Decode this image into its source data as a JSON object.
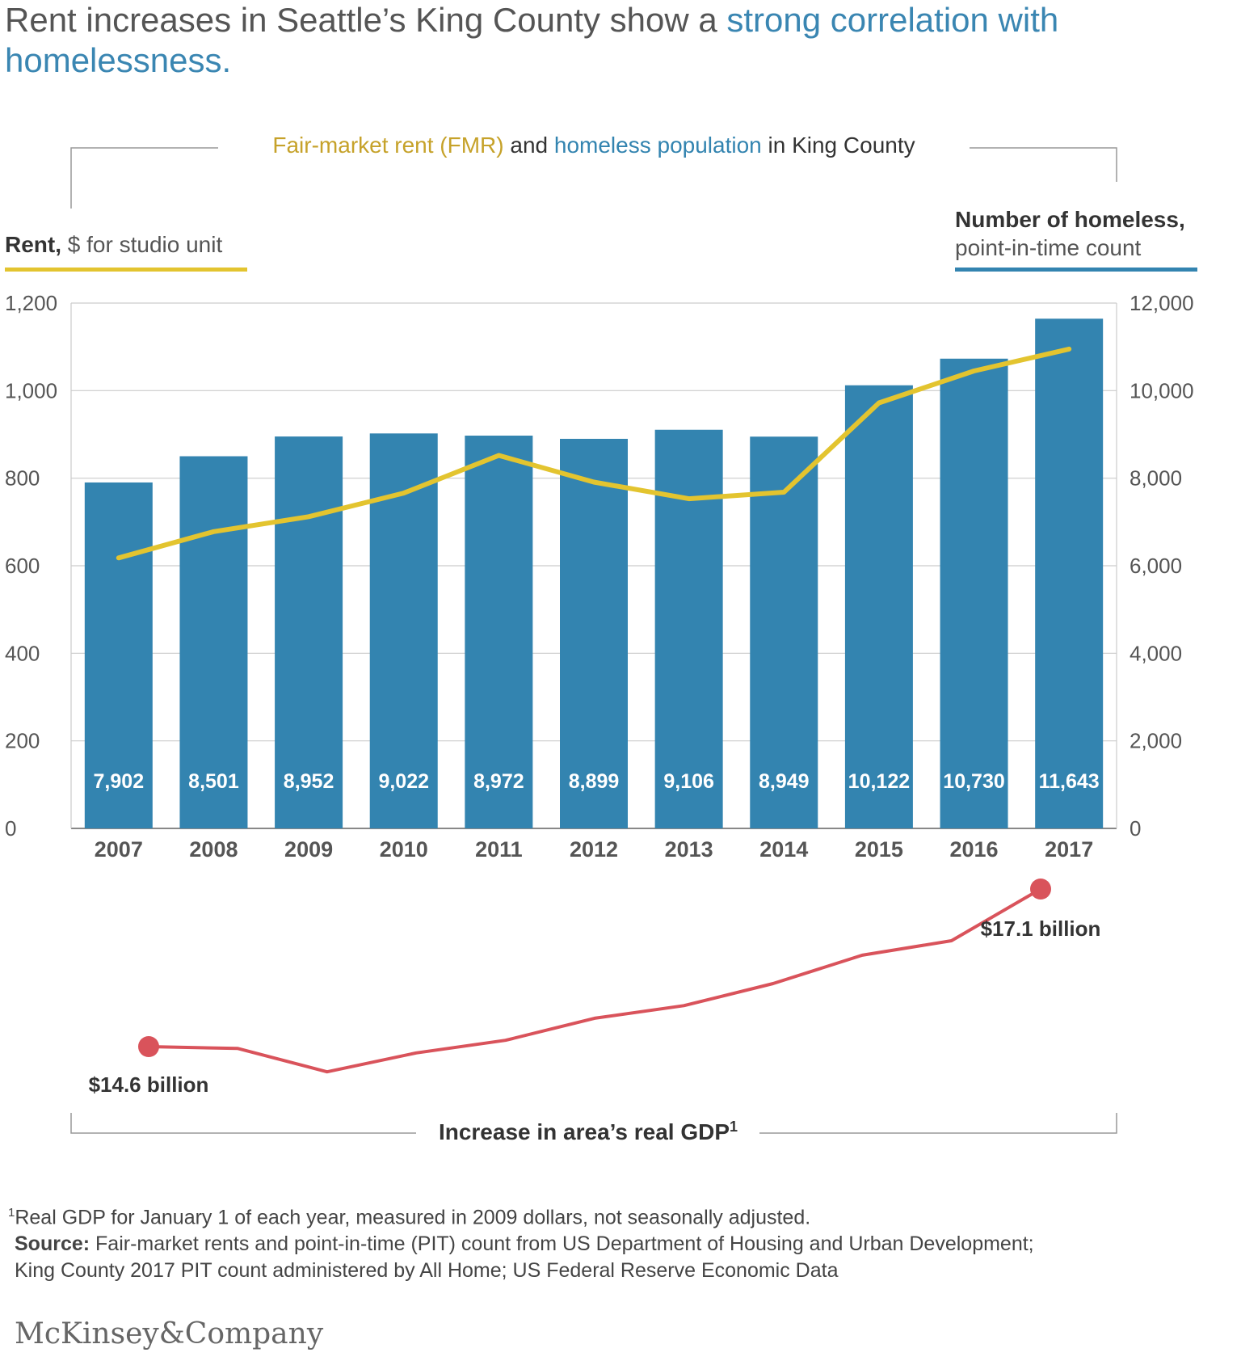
{
  "title": {
    "part1": "Rent increases in Seattle’s King County show a ",
    "part2": "strong correlation with homelessness."
  },
  "subtitle": {
    "rent": "Fair-market rent (FMR)",
    "and": " and ",
    "homeless": "homeless population",
    "rest": " in King County"
  },
  "left_axis": {
    "bold": "Rent,",
    "rest": " $ for studio unit"
  },
  "right_axis": {
    "line1": "Number of homeless,",
    "line2": "point-in-time count"
  },
  "colors": {
    "bar": "#3384b0",
    "rent_line": "#e3c42f",
    "gdp_line": "#d9535b",
    "accent": "#3a86b2",
    "rent_text": "#c6a22a"
  },
  "chart_data": {
    "type": "bar",
    "categories": [
      "2007",
      "2008",
      "2009",
      "2010",
      "2011",
      "2012",
      "2013",
      "2014",
      "2015",
      "2016",
      "2017"
    ],
    "series": [
      {
        "type": "bar",
        "axis": "right",
        "values": [
          7902,
          8501,
          8952,
          9022,
          8972,
          8899,
          9106,
          8949,
          10122,
          10730,
          11643
        ],
        "labels": [
          "7,902",
          "8,501",
          "8,952",
          "9,022",
          "8,972",
          "8,899",
          "9,106",
          "8,949",
          "10,122",
          "10,730",
          "11,643"
        ]
      },
      {
        "type": "line",
        "axis": "left",
        "values": [
          618,
          678,
          712,
          766,
          852,
          791,
          753,
          768,
          972,
          1045,
          1095
        ]
      }
    ],
    "left_ticks": [
      "0",
      "200",
      "400",
      "600",
      "800",
      "1,000",
      "1,200"
    ],
    "right_ticks": [
      "0",
      "2,000",
      "4,000",
      "6,000",
      "8,000",
      "10,000",
      "12,000"
    ],
    "ylim_left": [
      0,
      1200
    ],
    "ylim_right": [
      0,
      12000
    ],
    "grid": true
  },
  "gdp": {
    "title": "Increase in area’s real GDP",
    "title_sup": "1",
    "values": [
      14.6,
      14.57,
      14.2,
      14.5,
      14.7,
      15.05,
      15.25,
      15.6,
      16.05,
      16.28,
      17.1
    ],
    "start_label": "$14.6 billion",
    "end_label": "$17.1 billion"
  },
  "footnote": {
    "sup": "1",
    "text": "Real GDP for January 1 of each year, measured in 2009 dollars, not seasonally adjusted.",
    "source_label": "Source:",
    "source_line1": " Fair-market rents and point-in-time (PIT) count from US Department of Housing and Urban Development;",
    "source_line2": "King County 2017 PIT count administered by All Home; US Federal Reserve Economic Data"
  },
  "logo": "McKinsey&Company"
}
